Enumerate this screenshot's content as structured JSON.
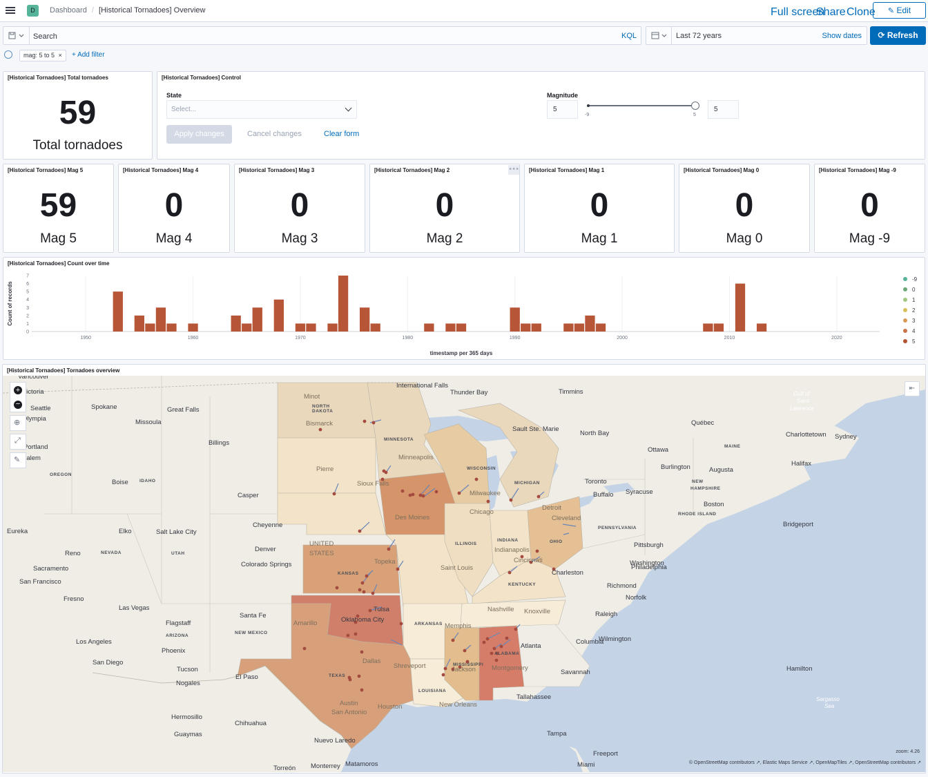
{
  "header": {
    "app_icon_letter": "D",
    "breadcrumb_root": "Dashboard",
    "breadcrumb_current": "[Historical Tornadoes] Overview",
    "full_screen": "Full screen",
    "share": "Share",
    "clone": "Clone",
    "edit": "Edit"
  },
  "query": {
    "search_placeholder": "Search",
    "language": "KQL",
    "date_range": "Last 72 years",
    "show_dates": "Show dates",
    "refresh": "Refresh"
  },
  "filters": {
    "pills": [
      "mag: 5 to 5"
    ],
    "add_filter": "+ Add filter"
  },
  "total_panel": {
    "title": "[Historical Tornadoes] Total tornadoes",
    "value": "59",
    "label": "Total tornadoes"
  },
  "control_panel": {
    "title": "[Historical Tornadoes] Control",
    "state_label": "State",
    "state_placeholder": "Select...",
    "magnitude_label": "Magnitude",
    "mag_min_value": "5",
    "mag_max_value": "5",
    "slider_min_tick": "-9",
    "slider_max_tick": "5",
    "apply": "Apply changes",
    "cancel": "Cancel changes",
    "clear": "Clear form"
  },
  "mag_panels": [
    {
      "title": "[Historical Tornadoes] Mag 5",
      "value": "59",
      "label": "Mag 5"
    },
    {
      "title": "[Historical Tornadoes] Mag 4",
      "value": "0",
      "label": "Mag 4"
    },
    {
      "title": "[Historical Tornadoes] Mag 3",
      "value": "0",
      "label": "Mag 3"
    },
    {
      "title": "[Historical Tornadoes] Mag 2",
      "value": "0",
      "label": "Mag 2"
    },
    {
      "title": "[Historical Tornadoes] Mag 1",
      "value": "0",
      "label": "Mag 1"
    },
    {
      "title": "[Historical Tornadoes] Mag 0",
      "value": "0",
      "label": "Mag 0"
    },
    {
      "title": "[Historical Tornadoes] Mag -9",
      "value": "0",
      "label": "Mag -9"
    }
  ],
  "count_panel": {
    "title": "[Historical Tornadoes] Count over time"
  },
  "chart_data": {
    "type": "bar",
    "title": "[Historical Tornadoes] Count over time",
    "xlabel": "timestamp per 365 days",
    "ylabel": "Count of records",
    "x_ticks": [
      "1950",
      "1960",
      "1970",
      "1980",
      "1990",
      "2000",
      "2010",
      "2020"
    ],
    "y_ticks": [
      "0",
      "1",
      "2",
      "3",
      "4",
      "5",
      "6",
      "7"
    ],
    "xlim": [
      1946,
      2024
    ],
    "ylim": [
      0,
      7
    ],
    "legend_position": "right",
    "legend": [
      {
        "name": "-9",
        "color": "#54b399"
      },
      {
        "name": "0",
        "color": "#6aa87a"
      },
      {
        "name": "1",
        "color": "#9fc77d"
      },
      {
        "name": "2",
        "color": "#d6bf57"
      },
      {
        "name": "3",
        "color": "#d69a57"
      },
      {
        "name": "4",
        "color": "#c7744a"
      },
      {
        "name": "5",
        "color": "#b0532f"
      }
    ],
    "series": [
      {
        "name": "5",
        "color": "#b75537",
        "x": [
          1953,
          1955,
          1956,
          1957,
          1958,
          1960,
          1964,
          1965,
          1966,
          1968,
          1970,
          1971,
          1973,
          1974,
          1976,
          1977,
          1982,
          1984,
          1985,
          1990,
          1991,
          1992,
          1995,
          1996,
          1997,
          1998,
          2008,
          2009,
          2011,
          2013
        ],
        "values": [
          5,
          2,
          1,
          3,
          1,
          1,
          2,
          1,
          3,
          4,
          1,
          1,
          1,
          7,
          3,
          1,
          1,
          1,
          1,
          3,
          1,
          1,
          1,
          1,
          2,
          1,
          1,
          1,
          6,
          1
        ]
      }
    ]
  },
  "map_panel": {
    "title": "[Historical Tornadoes] Tornadoes overview",
    "attribution": "© OpenStreetMap contributors  ↗, Elastic Maps Service  ↗, OpenMapTiles  ↗, OpenStreetMap contributors  ↗",
    "zoom": "zoom: 4.26",
    "labels": [
      {
        "t": "Vancouver",
        "c": ""
      },
      {
        "t": "Victoria",
        "c": ""
      },
      {
        "t": "Seattle",
        "c": ""
      },
      {
        "t": "Spokane",
        "c": ""
      },
      {
        "t": "Olympia",
        "c": ""
      },
      {
        "t": "Missoula",
        "c": ""
      },
      {
        "t": "Great Falls",
        "c": ""
      },
      {
        "t": "Billings",
        "c": ""
      },
      {
        "t": "Portland",
        "c": ""
      },
      {
        "t": "Salem",
        "c": ""
      },
      {
        "t": "OREGON",
        "c": "st"
      },
      {
        "t": "Boise",
        "c": ""
      },
      {
        "t": "IDAHO",
        "c": "st"
      },
      {
        "t": "Casper",
        "c": ""
      },
      {
        "t": "Eureka",
        "c": ""
      },
      {
        "t": "Elko",
        "c": ""
      },
      {
        "t": "Salt Lake City",
        "c": ""
      },
      {
        "t": "Cheyenne",
        "c": ""
      },
      {
        "t": "Reno",
        "c": ""
      },
      {
        "t": "NEVADA",
        "c": "st"
      },
      {
        "t": "UTAH",
        "c": "st"
      },
      {
        "t": "Denver",
        "c": ""
      },
      {
        "t": "Colorado Springs",
        "c": ""
      },
      {
        "t": "Sacramento",
        "c": ""
      },
      {
        "t": "San Francisco",
        "c": ""
      },
      {
        "t": "Fresno",
        "c": ""
      },
      {
        "t": "Las Vegas",
        "c": ""
      },
      {
        "t": "Santa Fe",
        "c": ""
      },
      {
        "t": "Flagstaff",
        "c": ""
      },
      {
        "t": "ARIZONA",
        "c": "st"
      },
      {
        "t": "NEW MEXICO",
        "c": "st"
      },
      {
        "t": "Los Angeles",
        "c": ""
      },
      {
        "t": "Phoenix",
        "c": ""
      },
      {
        "t": "San Diego",
        "c": ""
      },
      {
        "t": "Tucson",
        "c": ""
      },
      {
        "t": "Nogales",
        "c": ""
      },
      {
        "t": "El Paso",
        "c": ""
      },
      {
        "t": "Hermosillo",
        "c": ""
      },
      {
        "t": "Chihuahua",
        "c": ""
      },
      {
        "t": "Guaymas",
        "c": ""
      },
      {
        "t": "Nuevo Laredo",
        "c": ""
      },
      {
        "t": "Torreón",
        "c": ""
      },
      {
        "t": "Monterrey",
        "c": ""
      },
      {
        "t": "Matamoros",
        "c": ""
      },
      {
        "t": "Minot",
        "c": "gr"
      },
      {
        "t": "NORTH",
        "c": "st"
      },
      {
        "t": "DAKOTA",
        "c": "st"
      },
      {
        "t": "Bismarck",
        "c": "gr"
      },
      {
        "t": "Pierre",
        "c": "gr"
      },
      {
        "t": "Sioux Falls",
        "c": "gr"
      },
      {
        "t": "MINNESOTA",
        "c": "st"
      },
      {
        "t": "Minneapolis",
        "c": "gr"
      },
      {
        "t": "UNITED",
        "c": "gr"
      },
      {
        "t": "STATES",
        "c": "gr"
      },
      {
        "t": "KANSAS",
        "c": "st"
      },
      {
        "t": "Topeka",
        "c": "gr"
      },
      {
        "t": "Des Moines",
        "c": "gr"
      },
      {
        "t": "Tulsa",
        "c": ""
      },
      {
        "t": "Oklahoma City",
        "c": ""
      },
      {
        "t": "Amarillo",
        "c": "gr"
      },
      {
        "t": "TEXAS",
        "c": "st"
      },
      {
        "t": "Dallas",
        "c": "gr"
      },
      {
        "t": "Austin",
        "c": "gr"
      },
      {
        "t": "San Antonio",
        "c": "gr"
      },
      {
        "t": "Houston",
        "c": "gr"
      },
      {
        "t": "Shreveport",
        "c": "gr"
      },
      {
        "t": "LOUISIANA",
        "c": "st"
      },
      {
        "t": "New Orleans",
        "c": "gr"
      },
      {
        "t": "ARKANSAS",
        "c": "st"
      },
      {
        "t": "Memphis",
        "c": "gr"
      },
      {
        "t": "MISSISSIPPI",
        "c": "st"
      },
      {
        "t": "Jackson",
        "c": "gr"
      },
      {
        "t": "ALABAMA",
        "c": "st"
      },
      {
        "t": "Montgomery",
        "c": "gr"
      },
      {
        "t": "Nashville",
        "c": "gr"
      },
      {
        "t": "Knoxville",
        "c": "gr"
      },
      {
        "t": "KENTUCKY",
        "c": "st"
      },
      {
        "t": "Saint Louis",
        "c": "gr"
      },
      {
        "t": "ILLINOIS",
        "c": "st"
      },
      {
        "t": "Chicago",
        "c": "gr"
      },
      {
        "t": "INDIANA",
        "c": "st"
      },
      {
        "t": "Indianapolis",
        "c": "gr"
      },
      {
        "t": "Cincinnati",
        "c": "gr"
      },
      {
        "t": "OHIO",
        "c": "st"
      },
      {
        "t": "Cleveland",
        "c": "gr"
      },
      {
        "t": "Detroit",
        "c": "gr"
      },
      {
        "t": "MICHIGAN",
        "c": "st"
      },
      {
        "t": "WISCONSIN",
        "c": "st"
      },
      {
        "t": "Milwaukee",
        "c": "gr"
      },
      {
        "t": "Thunder Bay",
        "c": ""
      },
      {
        "t": "International Falls",
        "c": ""
      },
      {
        "t": "Timmins",
        "c": ""
      },
      {
        "t": "Sault Ste. Marie",
        "c": ""
      },
      {
        "t": "North Bay",
        "c": ""
      },
      {
        "t": "Ottawa",
        "c": ""
      },
      {
        "t": "Québec",
        "c": ""
      },
      {
        "t": "Toronto",
        "c": ""
      },
      {
        "t": "Buffalo",
        "c": ""
      },
      {
        "t": "Syracuse",
        "c": ""
      },
      {
        "t": "Burlington",
        "c": ""
      },
      {
        "t": "Augusta",
        "c": ""
      },
      {
        "t": "MAINE",
        "c": "st"
      },
      {
        "t": "NEW",
        "c": "st"
      },
      {
        "t": "HAMPSHIRE",
        "c": "st"
      },
      {
        "t": "Boston",
        "c": ""
      },
      {
        "t": "RHODE ISLAND",
        "c": "st"
      },
      {
        "t": "Bridgeport",
        "c": ""
      },
      {
        "t": "PENNSYLVANIA",
        "c": "st"
      },
      {
        "t": "Pittsburgh",
        "c": ""
      },
      {
        "t": "Philadelphia",
        "c": ""
      },
      {
        "t": "Washington",
        "c": ""
      },
      {
        "t": "Charleston",
        "c": ""
      },
      {
        "t": "Richmond",
        "c": ""
      },
      {
        "t": "Norfolk",
        "c": ""
      },
      {
        "t": "Raleigh",
        "c": ""
      },
      {
        "t": "Wilmington",
        "c": ""
      },
      {
        "t": "Columbia",
        "c": ""
      },
      {
        "t": "Atlanta",
        "c": ""
      },
      {
        "t": "Savannah",
        "c": ""
      },
      {
        "t": "Tallahassee",
        "c": ""
      },
      {
        "t": "Tampa",
        "c": ""
      },
      {
        "t": "Miami",
        "c": ""
      },
      {
        "t": "Freeport",
        "c": ""
      },
      {
        "t": "Charlottetown",
        "c": ""
      },
      {
        "t": "Sydney",
        "c": ""
      },
      {
        "t": "Halifax",
        "c": ""
      },
      {
        "t": "Hamilton",
        "c": ""
      },
      {
        "t": "Gulf of",
        "c": "sea"
      },
      {
        "t": "Saint",
        "c": "sea"
      },
      {
        "t": "Lawrence",
        "c": "sea"
      },
      {
        "t": "Sargasso",
        "c": "sea"
      },
      {
        "t": "Sea",
        "c": "sea"
      }
    ]
  }
}
